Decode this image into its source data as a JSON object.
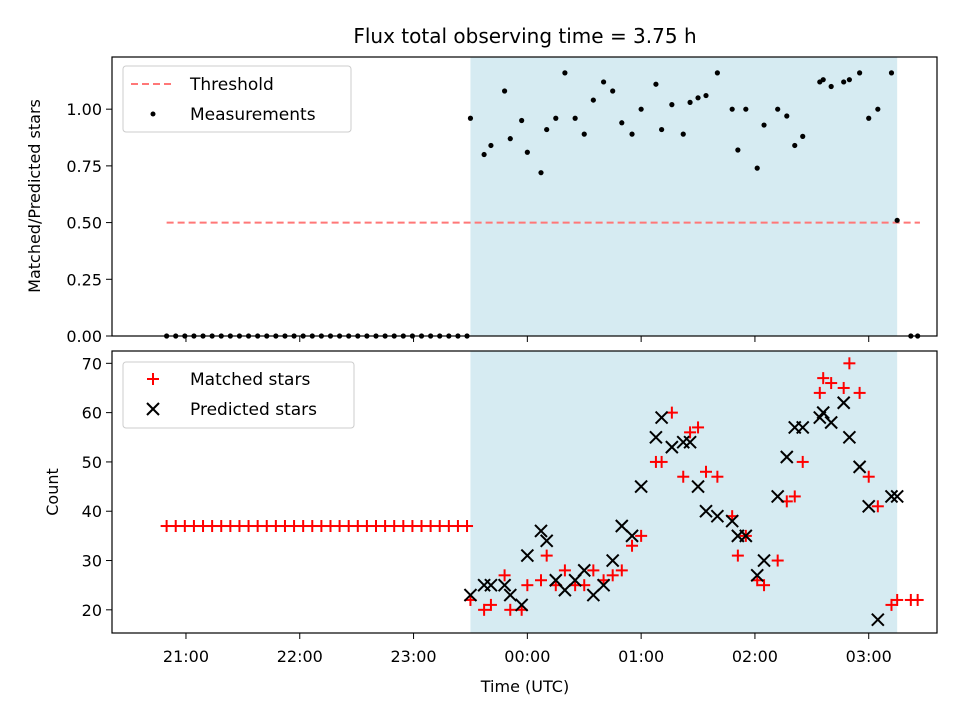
{
  "chart_data": [
    {
      "type": "scatter",
      "title": "Flux total observing time = 3.75 h",
      "xlabel": "",
      "ylabel": "Matched/Predicted stars",
      "xlim_hours": [
        20.35,
        27.6
      ],
      "ylim": [
        0,
        1.23
      ],
      "yticks": [
        "0.00",
        "0.25",
        "0.50",
        "0.75",
        "1.00"
      ],
      "ytick_values": [
        0,
        0.25,
        0.5,
        0.75,
        1.0
      ],
      "shaded_range_hours": [
        23.5,
        27.25
      ],
      "shade_color": "#add8e6",
      "legend_placement": "upper-left",
      "threshold": {
        "name": "Threshold",
        "value": 0.5,
        "x_range": [
          20.83,
          27.45
        ],
        "color": "#ff7777"
      },
      "series": [
        {
          "name": "Measurements",
          "color": "#000000",
          "x": [
            20.83,
            20.91,
            20.99,
            21.07,
            21.15,
            21.23,
            21.31,
            21.39,
            21.47,
            21.55,
            21.63,
            21.71,
            21.79,
            21.87,
            21.95,
            22.03,
            22.11,
            22.19,
            22.27,
            22.35,
            22.43,
            22.51,
            22.59,
            22.67,
            22.75,
            22.83,
            22.91,
            22.99,
            23.07,
            23.15,
            23.23,
            23.31,
            23.39,
            23.47,
            23.5,
            23.62,
            23.68,
            23.8,
            23.85,
            23.95,
            24.0,
            24.12,
            24.17,
            24.25,
            24.33,
            24.42,
            24.5,
            24.58,
            24.67,
            24.75,
            24.83,
            24.92,
            25.0,
            25.13,
            25.18,
            25.27,
            25.37,
            25.43,
            25.5,
            25.57,
            25.67,
            25.8,
            25.85,
            25.92,
            26.02,
            26.08,
            26.2,
            26.28,
            26.35,
            26.42,
            26.57,
            26.6,
            26.67,
            26.78,
            26.83,
            26.92,
            27.0,
            27.08,
            27.2,
            27.25,
            27.37,
            27.43
          ],
          "y": [
            0,
            0,
            0,
            0,
            0,
            0,
            0,
            0,
            0,
            0,
            0,
            0,
            0,
            0,
            0,
            0,
            0,
            0,
            0,
            0,
            0,
            0,
            0,
            0,
            0,
            0,
            0,
            0,
            0,
            0,
            0,
            0,
            0,
            0,
            0.96,
            0.8,
            0.84,
            1.08,
            0.87,
            0.95,
            0.81,
            0.72,
            0.91,
            0.96,
            1.16,
            0.96,
            0.89,
            1.04,
            1.12,
            1.08,
            0.94,
            0.89,
            1.0,
            1.11,
            0.91,
            1.02,
            0.89,
            1.03,
            1.05,
            1.06,
            1.16,
            1.0,
            0.82,
            1.0,
            0.74,
            0.93,
            1.0,
            0.97,
            0.84,
            0.88,
            1.12,
            1.13,
            1.1,
            1.12,
            1.13,
            1.16,
            0.96,
            1.0,
            1.16,
            0.51,
            0,
            0
          ]
        }
      ]
    },
    {
      "type": "scatter",
      "title": "",
      "xlabel": "Time (UTC)",
      "ylabel": "Count",
      "xlim_hours": [
        20.35,
        27.6
      ],
      "ylim": [
        15.3,
        72.5
      ],
      "yticks": [
        "20",
        "30",
        "40",
        "50",
        "60",
        "70"
      ],
      "ytick_values": [
        20,
        30,
        40,
        50,
        60,
        70
      ],
      "xticks": [
        "21:00",
        "22:00",
        "23:00",
        "00:00",
        "01:00",
        "02:00",
        "03:00"
      ],
      "xtick_values": [
        21,
        22,
        23,
        24,
        25,
        26,
        27
      ],
      "shaded_range_hours": [
        23.5,
        27.25
      ],
      "shade_color": "#add8e6",
      "legend_placement": "upper-left",
      "series": [
        {
          "name": "Matched stars",
          "marker": "plus",
          "color": "#ff0000",
          "x": [
            20.83,
            20.91,
            20.99,
            21.07,
            21.15,
            21.23,
            21.31,
            21.39,
            21.47,
            21.55,
            21.63,
            21.71,
            21.79,
            21.87,
            21.95,
            22.03,
            22.11,
            22.19,
            22.27,
            22.35,
            22.43,
            22.51,
            22.59,
            22.67,
            22.75,
            22.83,
            22.91,
            22.99,
            23.07,
            23.15,
            23.23,
            23.31,
            23.39,
            23.47,
            23.5,
            23.62,
            23.68,
            23.8,
            23.85,
            23.95,
            24.0,
            24.12,
            24.17,
            24.25,
            24.33,
            24.42,
            24.5,
            24.58,
            24.67,
            24.75,
            24.83,
            24.92,
            25.0,
            25.13,
            25.18,
            25.27,
            25.37,
            25.43,
            25.5,
            25.57,
            25.67,
            25.8,
            25.85,
            25.92,
            26.02,
            26.08,
            26.2,
            26.28,
            26.35,
            26.42,
            26.57,
            26.6,
            26.67,
            26.78,
            26.83,
            26.92,
            27.0,
            27.08,
            27.2,
            27.25,
            27.37,
            27.43
          ],
          "y": [
            37,
            37,
            37,
            37,
            37,
            37,
            37,
            37,
            37,
            37,
            37,
            37,
            37,
            37,
            37,
            37,
            37,
            37,
            37,
            37,
            37,
            37,
            37,
            37,
            37,
            37,
            37,
            37,
            37,
            37,
            37,
            37,
            37,
            37,
            22,
            20,
            21,
            27,
            20,
            20,
            25,
            26,
            31,
            25,
            28,
            25,
            25,
            28,
            26,
            27,
            28,
            33,
            35,
            50,
            50,
            60,
            47,
            56,
            57,
            48,
            47,
            39,
            31,
            35,
            26,
            25,
            30,
            42,
            43,
            50,
            64,
            67,
            66,
            65,
            70,
            64,
            47,
            41,
            21,
            22,
            22,
            22
          ]
        },
        {
          "name": "Predicted stars",
          "marker": "x",
          "color": "#000000",
          "x": [
            23.5,
            23.62,
            23.68,
            23.8,
            23.85,
            23.95,
            24.0,
            24.12,
            24.17,
            24.25,
            24.33,
            24.42,
            24.5,
            24.58,
            24.67,
            24.75,
            24.83,
            24.92,
            25.0,
            25.13,
            25.18,
            25.27,
            25.37,
            25.43,
            25.5,
            25.57,
            25.67,
            25.8,
            25.85,
            25.92,
            26.02,
            26.08,
            26.2,
            26.28,
            26.35,
            26.42,
            26.57,
            26.6,
            26.67,
            26.78,
            26.83,
            26.92,
            27.0,
            27.08,
            27.2,
            27.25
          ],
          "y": [
            23,
            25,
            25,
            25,
            23,
            21,
            31,
            36,
            34,
            26,
            24,
            26,
            28,
            23,
            25,
            30,
            37,
            35,
            45,
            55,
            59,
            53,
            54,
            54,
            45,
            40,
            39,
            38,
            35,
            35,
            27,
            30,
            43,
            51,
            57,
            57,
            59,
            60,
            58,
            62,
            55,
            49,
            41,
            18,
            43,
            43
          ]
        }
      ]
    }
  ]
}
